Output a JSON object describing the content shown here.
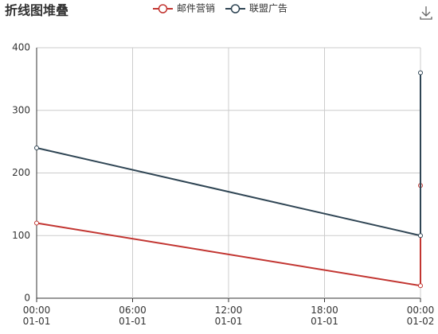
{
  "chart_data": {
    "type": "line",
    "title": "折线图堆叠",
    "stacked": true,
    "grid": true,
    "x": [
      0,
      24,
      24
    ],
    "xlim": [
      0,
      24
    ],
    "xticks": [
      {
        "value": 0,
        "label": "00:00\n01-01"
      },
      {
        "value": 6,
        "label": "06:00\n01-01"
      },
      {
        "value": 12,
        "label": "12:00\n01-01"
      },
      {
        "value": 18,
        "label": "18:00\n01-01"
      },
      {
        "value": 24,
        "label": "00:00\n01-02"
      }
    ],
    "ylim": [
      0,
      400
    ],
    "yticks": [
      0,
      100,
      200,
      300,
      400
    ],
    "series": [
      {
        "name": "邮件营销",
        "color": "#c23531",
        "values": [
          120,
          20,
          180
        ]
      },
      {
        "name": "联盟广告",
        "color": "#2f4554",
        "values": [
          120,
          80,
          180
        ]
      }
    ]
  }
}
